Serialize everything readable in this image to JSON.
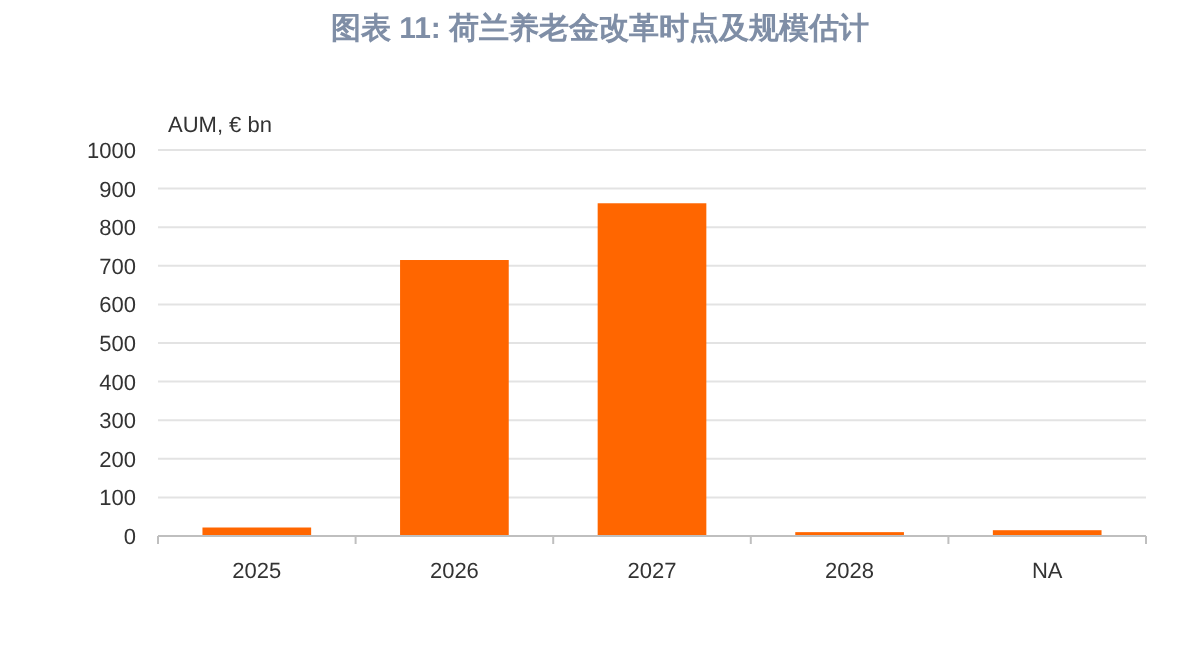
{
  "chart_data": {
    "type": "bar",
    "title": "图表 11: 荷兰养老金改革时点及规模估计",
    "ylabel": "AUM, € bn",
    "categories": [
      "2025",
      "2026",
      "2027",
      "2028",
      "NA"
    ],
    "values": [
      22,
      715,
      862,
      10,
      15
    ],
    "color": "#ff6600",
    "ylim": [
      0,
      1000
    ],
    "yticks": [
      0,
      100,
      200,
      300,
      400,
      500,
      600,
      700,
      800,
      900,
      1000
    ],
    "grid": "y"
  }
}
